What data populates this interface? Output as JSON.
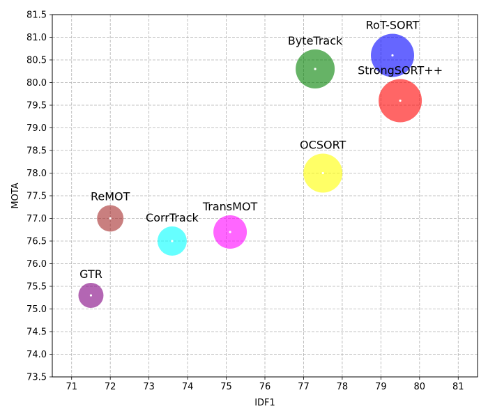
{
  "chart_data": {
    "type": "scatter",
    "title": "",
    "xlabel": "IDF1",
    "ylabel": "MOTA",
    "xlim": [
      70.5,
      81.5
    ],
    "ylim": [
      73.5,
      81.5
    ],
    "xticks": [
      71,
      72,
      73,
      74,
      75,
      76,
      77,
      78,
      79,
      80,
      81
    ],
    "yticks": [
      73.5,
      74.0,
      74.5,
      75.0,
      75.5,
      76.0,
      76.5,
      77.0,
      77.5,
      78.0,
      78.5,
      79.0,
      79.5,
      80.0,
      80.5,
      81.0,
      81.5
    ],
    "grid": true,
    "points": [
      {
        "name": "GTR",
        "x": 71.5,
        "y": 75.3,
        "size": 18,
        "color": "#800080"
      },
      {
        "name": "ReMOT",
        "x": 72.0,
        "y": 77.0,
        "size": 19,
        "color": "#a52a2a"
      },
      {
        "name": "CorrTrack",
        "x": 73.6,
        "y": 76.5,
        "size": 21,
        "color": "#00ffff"
      },
      {
        "name": "TransMOT",
        "x": 75.1,
        "y": 76.7,
        "size": 24,
        "color": "#ff00ff"
      },
      {
        "name": "OCSORT",
        "x": 77.5,
        "y": 78.0,
        "size": 28,
        "color": "#ffff00"
      },
      {
        "name": "ByteTrack",
        "x": 77.3,
        "y": 80.3,
        "size": 28,
        "color": "#008000"
      },
      {
        "name": "RoT-SORT",
        "x": 79.3,
        "y": 80.6,
        "size": 31,
        "color": "#0000ff"
      },
      {
        "name": "StrongSORT++",
        "x": 79.5,
        "y": 79.6,
        "size": 31,
        "color": "#ff0000"
      }
    ],
    "bubble_opacity": 0.6
  }
}
